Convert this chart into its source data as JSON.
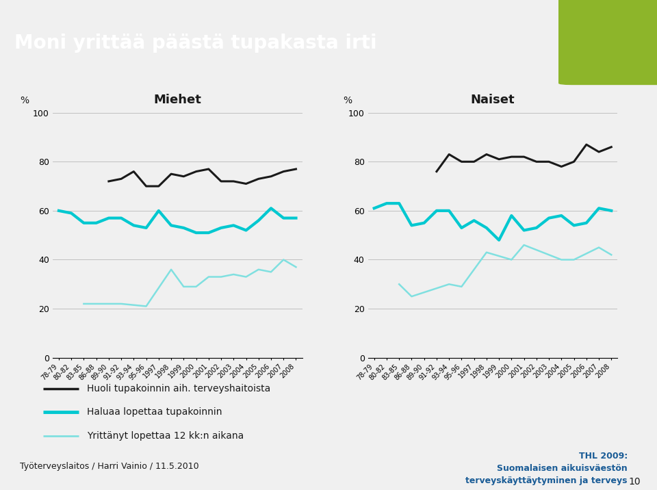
{
  "title": "Moni yrittää päästä tupakasta irti",
  "subtitle_left": "Miehet",
  "subtitle_right": "Naiset",
  "ylabel": "%",
  "x_labels": [
    "78-79",
    "80-82",
    "83-85",
    "86-88",
    "89-90",
    "91-92",
    "93-94",
    "95-96",
    "1997",
    "1998",
    "1999",
    "2000",
    "2001",
    "2002",
    "2003",
    "2004",
    "2005",
    "2006",
    "2007",
    "2008"
  ],
  "men_black": [
    null,
    null,
    null,
    null,
    72,
    73,
    76,
    70,
    70,
    75,
    74,
    76,
    77,
    72,
    72,
    71,
    73,
    74,
    76,
    77
  ],
  "men_cyan": [
    60,
    59,
    55,
    55,
    57,
    57,
    54,
    53,
    60,
    54,
    53,
    51,
    51,
    53,
    54,
    52,
    56,
    61,
    57,
    57
  ],
  "men_light": [
    null,
    null,
    22,
    22,
    null,
    22,
    null,
    21,
    null,
    36,
    29,
    29,
    33,
    33,
    34,
    33,
    36,
    35,
    40,
    37
  ],
  "women_black": [
    null,
    null,
    null,
    null,
    null,
    76,
    83,
    80,
    80,
    83,
    81,
    82,
    82,
    80,
    80,
    78,
    80,
    87,
    84,
    86
  ],
  "women_cyan": [
    61,
    63,
    63,
    54,
    55,
    60,
    60,
    53,
    56,
    53,
    48,
    58,
    52,
    53,
    57,
    58,
    54,
    55,
    61,
    60
  ],
  "women_light": [
    null,
    null,
    30,
    25,
    null,
    null,
    30,
    29,
    null,
    43,
    null,
    40,
    46,
    null,
    null,
    40,
    40,
    null,
    45,
    42
  ],
  "legend_black": "Huoli tupakoinnin aih. terveyshaitoista",
  "legend_cyan": "Haluaa lopettaa tupakoinnin",
  "legend_light": "Yrittänyt lopettaa 12 kk:n aikana",
  "footer_left": "Työterveyslaitos / Harri Vainio / 11.5.2010",
  "footer_right_line1": "THL 2009:",
  "footer_right_line2": "Suomalaisen aikuisväestön",
  "footer_right_line3": "terveyskäyttäytyminen ja terveys",
  "footer_page": "10",
  "header_bg": "#1b3d6e",
  "header_green": "#8db52a",
  "title_color": "#ffffff",
  "thl_color": "#1a5c96",
  "black_line": "#1a1a1a",
  "cyan_line": "#00c8d0",
  "light_cyan_line": "#80e0e0",
  "bg_color": "#f0f0f0"
}
